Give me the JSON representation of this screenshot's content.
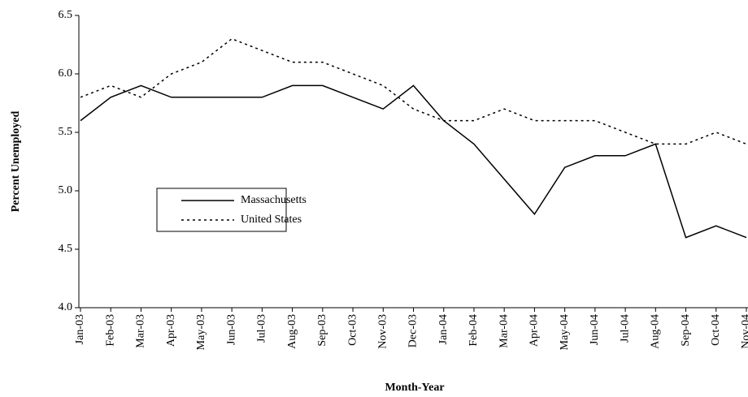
{
  "chart_data": {
    "type": "line",
    "x_label": "Month-Year",
    "y_label": "Percent Unemployed",
    "categories": [
      "Jan-03",
      "Feb-03",
      "Mar-03",
      "Apr-03",
      "May-03",
      "Jun-03",
      "Jul-03",
      "Aug-03",
      "Sep-03",
      "Oct-03",
      "Nov-03",
      "Dec-03",
      "Jan-04",
      "Feb-04",
      "Mar-04",
      "Apr-04",
      "May-04",
      "Jun-04",
      "Jul-04",
      "Aug-04",
      "Sep-04",
      "Oct-04",
      "Nov-04"
    ],
    "series": [
      {
        "name": "Massachusetts",
        "color": "#000000",
        "style": "solid",
        "values": [
          5.6,
          5.8,
          5.9,
          5.8,
          5.8,
          5.8,
          5.8,
          5.9,
          5.9,
          5.8,
          5.7,
          5.9,
          5.6,
          5.4,
          5.1,
          4.8,
          5.2,
          5.3,
          5.3,
          5.4,
          4.6,
          4.7,
          4.6
        ]
      },
      {
        "name": "United States",
        "color": "#000000",
        "style": "dotted",
        "values": [
          5.8,
          5.9,
          5.8,
          6.0,
          6.1,
          6.3,
          6.2,
          6.1,
          6.1,
          6.0,
          5.9,
          5.7,
          5.6,
          5.6,
          5.7,
          5.6,
          5.6,
          5.6,
          5.5,
          5.4,
          5.4,
          5.5,
          5.4
        ]
      }
    ],
    "ylim": [
      4.0,
      6.5
    ],
    "yticks": [
      {
        "value": 4,
        "label": "4.0"
      },
      4.5,
      {
        "value": 5,
        "label": "5.0"
      },
      5.5,
      {
        "value": 6,
        "label": "6.0"
      },
      6.5
    ],
    "legend": "center-left",
    "grid": false
  }
}
